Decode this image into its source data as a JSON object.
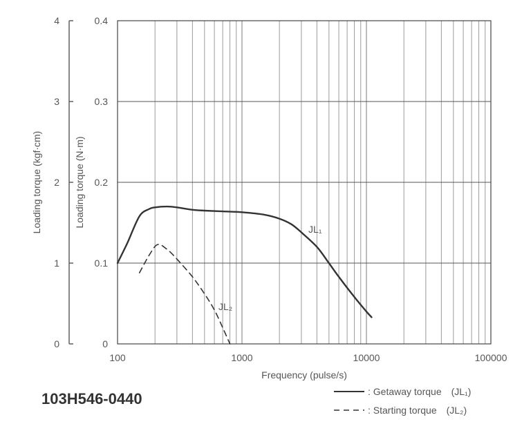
{
  "chart_data": {
    "type": "line",
    "x_scale": "log",
    "xlim": [
      100,
      100000
    ],
    "ylim_right_Nm": [
      0,
      0.4
    ],
    "ylim_left_kgfcm": [
      0,
      4
    ],
    "xlabel": "Frequency (pulse/s)",
    "ylabel_left": "Loading torque (kgf·cm)",
    "ylabel_right": "Loading torque (N·m)",
    "x_ticks": [
      "100",
      "1000",
      "10000",
      "100000"
    ],
    "x_tick_values": [
      100,
      1000,
      10000,
      100000
    ],
    "y_ticks_left": [
      "0",
      "1",
      "2",
      "3",
      "4"
    ],
    "y_ticks_right": [
      "0",
      "0.1",
      "0.2",
      "0.3",
      "0.4"
    ],
    "y_tick_values_right": [
      0,
      0.1,
      0.2,
      0.3,
      0.4
    ],
    "grid": true,
    "series": [
      {
        "name": "JL₁",
        "style": "solid",
        "points": [
          [
            100,
            0.1
          ],
          [
            120,
            0.125
          ],
          [
            150,
            0.158
          ],
          [
            180,
            0.167
          ],
          [
            200,
            0.169
          ],
          [
            250,
            0.17
          ],
          [
            300,
            0.169
          ],
          [
            400,
            0.166
          ],
          [
            500,
            0.165
          ],
          [
            700,
            0.164
          ],
          [
            1000,
            0.163
          ],
          [
            1500,
            0.16
          ],
          [
            2000,
            0.155
          ],
          [
            2500,
            0.148
          ],
          [
            3000,
            0.138
          ],
          [
            4000,
            0.12
          ],
          [
            5000,
            0.1
          ],
          [
            6000,
            0.083
          ],
          [
            8000,
            0.058
          ],
          [
            10000,
            0.04
          ],
          [
            11000,
            0.033
          ]
        ]
      },
      {
        "name": "JL₂",
        "style": "dashed",
        "points": [
          [
            150,
            0.088
          ],
          [
            180,
            0.11
          ],
          [
            210,
            0.123
          ],
          [
            250,
            0.117
          ],
          [
            300,
            0.105
          ],
          [
            400,
            0.083
          ],
          [
            500,
            0.062
          ],
          [
            600,
            0.042
          ],
          [
            700,
            0.02
          ],
          [
            800,
            0.0
          ]
        ]
      }
    ]
  },
  "model_number": "103H546-0440",
  "legend": {
    "getaway": ": Getaway torque　(JL₁)",
    "starting": ": Starting torque　(JL₂)"
  }
}
